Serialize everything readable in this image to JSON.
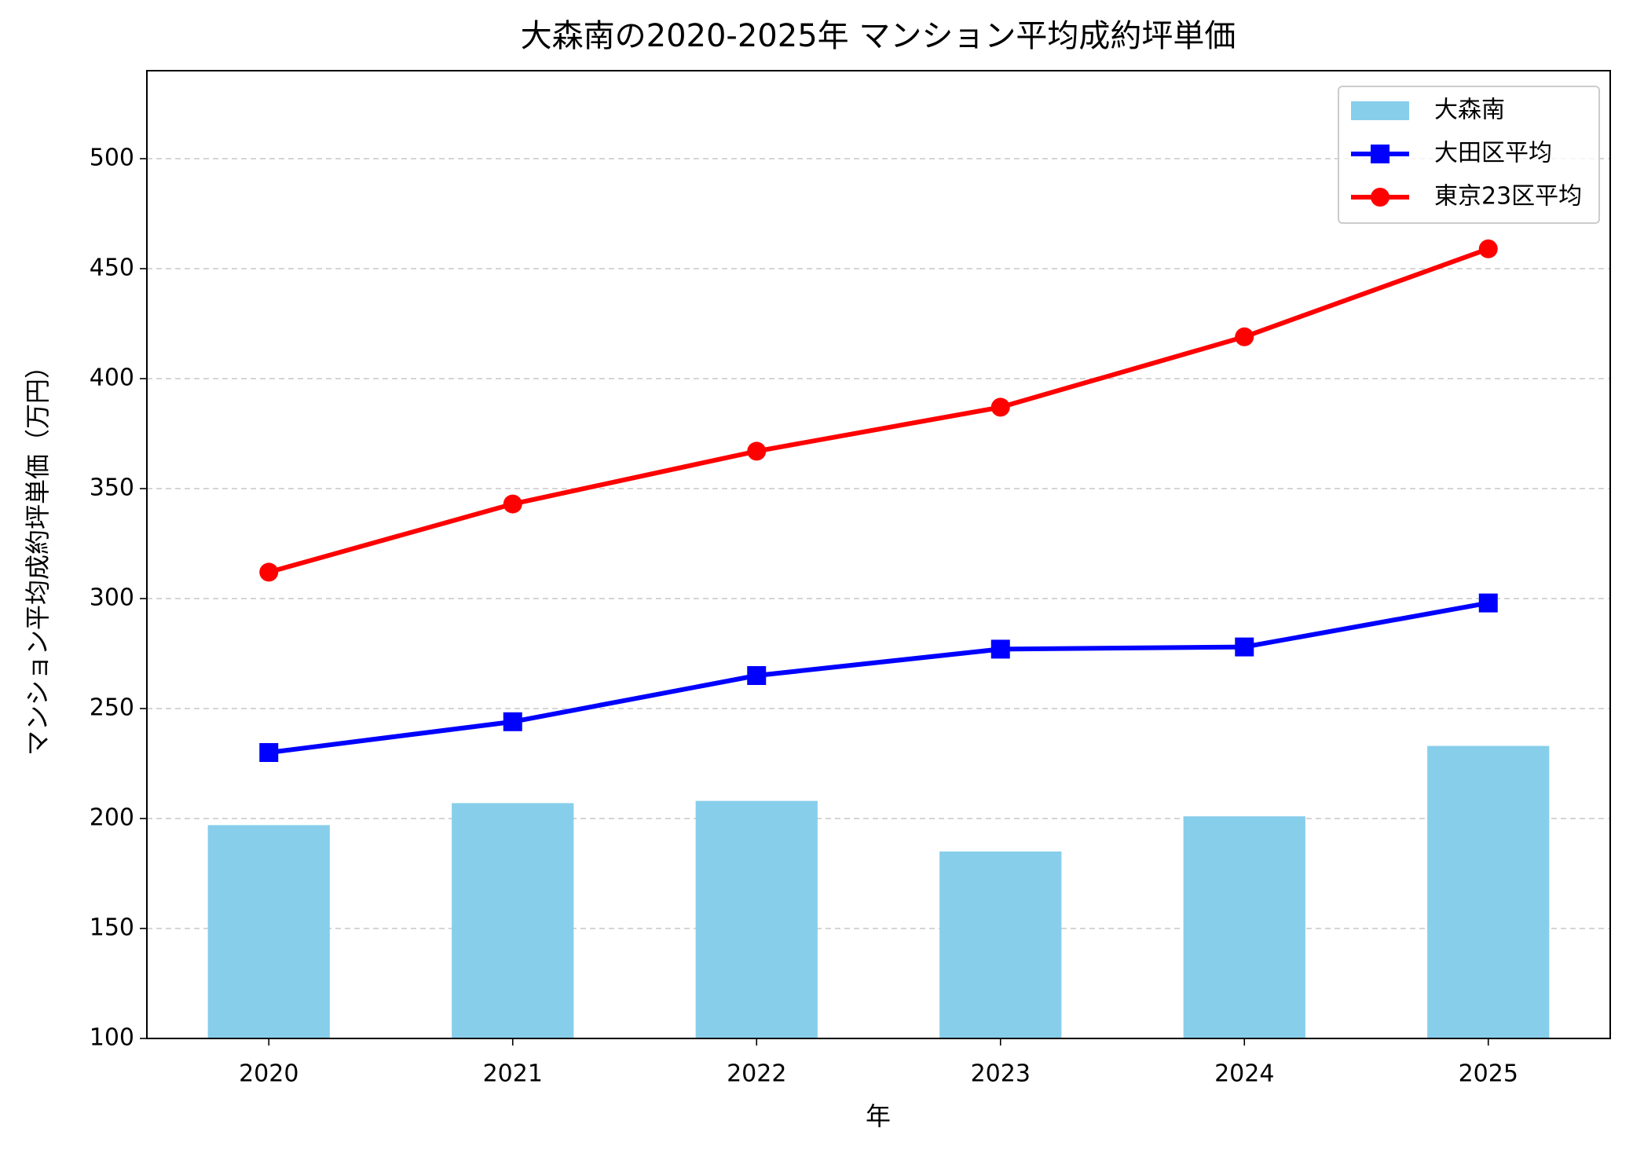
{
  "chart_data": {
    "type": "bar",
    "title": "大森南の2020-2025年 マンション平均成約坪単価",
    "x_label": "年",
    "y_label": "マンション平均成約坪単価（万円）",
    "categories": [
      "2020",
      "2021",
      "2022",
      "2023",
      "2024",
      "2025"
    ],
    "series": [
      {
        "name": "大森南",
        "type": "bar",
        "color": "#87ceeb",
        "values": [
          197,
          207,
          208,
          185,
          201,
          233
        ]
      },
      {
        "name": "大田区平均",
        "type": "line",
        "marker": "square",
        "color": "#0000ff",
        "values": [
          230,
          244,
          265,
          277,
          278,
          298
        ]
      },
      {
        "name": "東京23区平均",
        "type": "line",
        "marker": "circle",
        "color": "#ff0000",
        "values": [
          312,
          343,
          367,
          387,
          419,
          459
        ]
      }
    ],
    "ylim": [
      100,
      540
    ],
    "yticks": [
      100,
      150,
      200,
      250,
      300,
      350,
      400,
      450,
      500
    ],
    "grid": true,
    "legend": "upper-right"
  }
}
